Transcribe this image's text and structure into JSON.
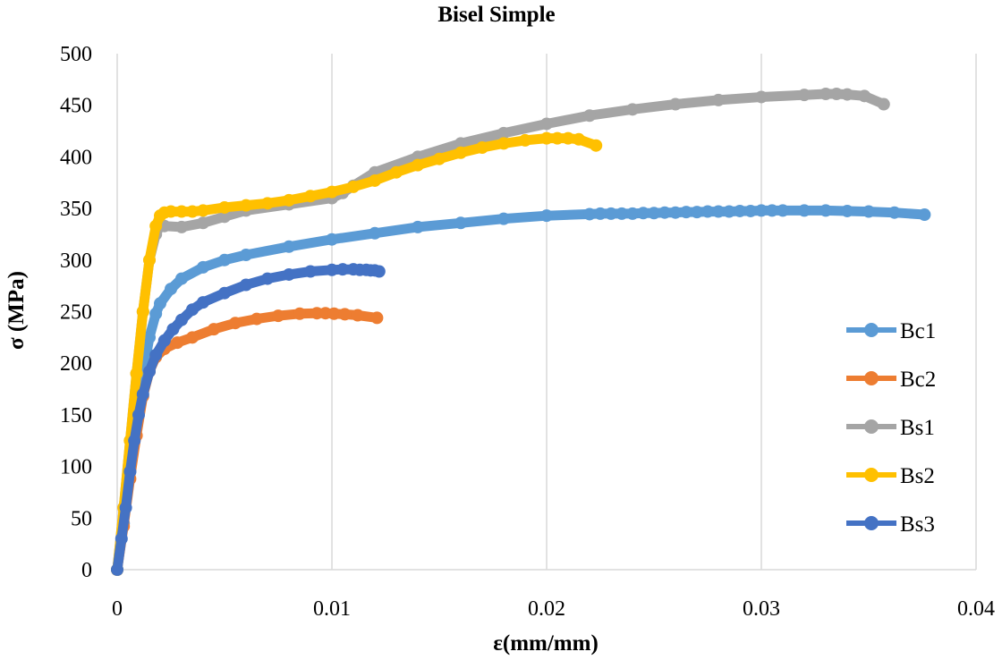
{
  "chart_data": {
    "type": "scatter",
    "title": "Bisel Simple",
    "xlabel": "ε(mm/mm)",
    "ylabel": "σ (MPa)",
    "xlim": [
      0,
      0.04
    ],
    "ylim": [
      0,
      500
    ],
    "xticks": [
      0,
      0.01,
      0.02,
      0.03,
      0.04
    ],
    "xtick_labels": [
      "0",
      "0.01",
      "0.02",
      "0.03",
      "0.04"
    ],
    "yticks": [
      0,
      50,
      100,
      150,
      200,
      250,
      300,
      350,
      400,
      450,
      500
    ],
    "ytick_labels": [
      "0",
      "50",
      "100",
      "150",
      "200",
      "250",
      "300",
      "350",
      "400",
      "450",
      "500"
    ],
    "grid": "vertical",
    "legend_position": "right",
    "series": [
      {
        "name": "Bc1",
        "color": "#5b9bd5",
        "x": [
          0,
          0.0003,
          0.0006,
          0.0009,
          0.0012,
          0.0015,
          0.0018,
          0.002,
          0.0025,
          0.003,
          0.004,
          0.005,
          0.006,
          0.008,
          0.01,
          0.012,
          0.014,
          0.016,
          0.018,
          0.02,
          0.022,
          0.0225,
          0.023,
          0.0235,
          0.024,
          0.0245,
          0.025,
          0.0255,
          0.026,
          0.0265,
          0.027,
          0.0275,
          0.028,
          0.0285,
          0.029,
          0.0295,
          0.03,
          0.0305,
          0.031,
          0.032,
          0.033,
          0.034,
          0.035,
          0.0362,
          0.0376
        ],
        "y": [
          0,
          45,
          95,
          145,
          190,
          225,
          248,
          258,
          272,
          282,
          293,
          300,
          305,
          313,
          320,
          326,
          332,
          336,
          340,
          343,
          344.5,
          345,
          345,
          345,
          345,
          345.5,
          345.5,
          346,
          346,
          346.5,
          346.5,
          347,
          347,
          347,
          347.5,
          347.5,
          348,
          348,
          348,
          348,
          348,
          347.5,
          347,
          346,
          344
        ]
      },
      {
        "name": "Bc2",
        "color": "#ed7d31",
        "x": [
          0,
          0.0003,
          0.0006,
          0.0009,
          0.0012,
          0.0015,
          0.0018,
          0.0022,
          0.0028,
          0.0035,
          0.0045,
          0.0055,
          0.0065,
          0.0075,
          0.0085,
          0.0093,
          0.0097,
          0.0101,
          0.0106,
          0.0112,
          0.0121
        ],
        "y": [
          0,
          42,
          88,
          130,
          168,
          192,
          206,
          214,
          220,
          225,
          233,
          239,
          243,
          246,
          248,
          248.5,
          248.5,
          248,
          247.5,
          246.5,
          244
        ]
      },
      {
        "name": "Bs1",
        "color": "#a5a5a5",
        "x": [
          0,
          0.0003,
          0.0006,
          0.0009,
          0.0012,
          0.0015,
          0.0018,
          0.002,
          0.0022,
          0.003,
          0.004,
          0.005,
          0.006,
          0.008,
          0.01,
          0.0105,
          0.011,
          0.012,
          0.014,
          0.016,
          0.018,
          0.02,
          0.022,
          0.024,
          0.026,
          0.028,
          0.03,
          0.032,
          0.033,
          0.0335,
          0.034,
          0.0348,
          0.0357
        ],
        "y": [
          0,
          60,
          125,
          190,
          250,
          300,
          325,
          333,
          333,
          332,
          336,
          342,
          348,
          354,
          360,
          365,
          372,
          385,
          400,
          413,
          423,
          432,
          440,
          446,
          451,
          455,
          458,
          460,
          461,
          461,
          460.5,
          459,
          451
        ]
      },
      {
        "name": "Bs2",
        "color": "#ffc000",
        "x": [
          0,
          0.0003,
          0.0006,
          0.0009,
          0.0012,
          0.0015,
          0.0018,
          0.002,
          0.0022,
          0.0025,
          0.003,
          0.0035,
          0.004,
          0.005,
          0.006,
          0.007,
          0.008,
          0.009,
          0.01,
          0.011,
          0.012,
          0.013,
          0.014,
          0.015,
          0.016,
          0.017,
          0.018,
          0.019,
          0.02,
          0.0205,
          0.021,
          0.0215,
          0.0223
        ],
        "y": [
          0,
          60,
          125,
          190,
          250,
          300,
          333,
          343,
          346,
          347,
          347,
          347,
          348,
          351,
          353,
          355,
          358,
          362,
          366,
          371,
          377,
          385,
          392,
          398,
          404,
          409,
          413,
          416,
          418,
          418,
          418,
          417,
          411
        ]
      },
      {
        "name": "Bs3",
        "color": "#4472c4",
        "x": [
          0,
          0.0002,
          0.0004,
          0.0006,
          0.0008,
          0.001,
          0.0012,
          0.0015,
          0.0018,
          0.0022,
          0.0026,
          0.003,
          0.0035,
          0.004,
          0.005,
          0.006,
          0.007,
          0.008,
          0.009,
          0.01,
          0.0105,
          0.011,
          0.0113,
          0.0116,
          0.0118,
          0.012,
          0.0122
        ],
        "y": [
          0,
          30,
          60,
          95,
          125,
          150,
          170,
          192,
          208,
          222,
          233,
          242,
          252,
          259,
          268,
          276,
          282,
          286,
          289,
          290.5,
          291,
          291,
          290.5,
          290.5,
          290,
          290,
          289
        ]
      }
    ]
  }
}
